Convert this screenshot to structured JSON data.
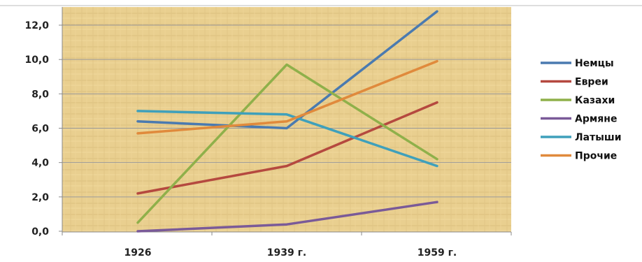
{
  "chart_data": {
    "type": "line",
    "categories": [
      "1926",
      "1939 г.",
      "1959 г."
    ],
    "ylim": [
      0,
      12.0
    ],
    "yticks": [
      "0,0",
      "2,0",
      "4,0",
      "6,0",
      "8,0",
      "10,0",
      "12,0"
    ],
    "grid": true,
    "legend": "right",
    "series": [
      {
        "name": "Немцы",
        "color": "#4a7ab0",
        "values": [
          6.4,
          6.0,
          12.8
        ]
      },
      {
        "name": "Евреи",
        "color": "#b5493f",
        "values": [
          2.2,
          3.8,
          7.5
        ]
      },
      {
        "name": "Казахи",
        "color": "#8fb04a",
        "values": [
          0.5,
          9.7,
          4.2
        ]
      },
      {
        "name": "Армяне",
        "color": "#7a5a98",
        "values": [
          0.0,
          0.4,
          1.7
        ]
      },
      {
        "name": "Латыши",
        "color": "#3fa0bb",
        "values": [
          7.0,
          6.8,
          3.8
        ]
      },
      {
        "name": "Прочие",
        "color": "#e08a3c",
        "values": [
          5.7,
          6.4,
          9.9
        ]
      }
    ]
  }
}
